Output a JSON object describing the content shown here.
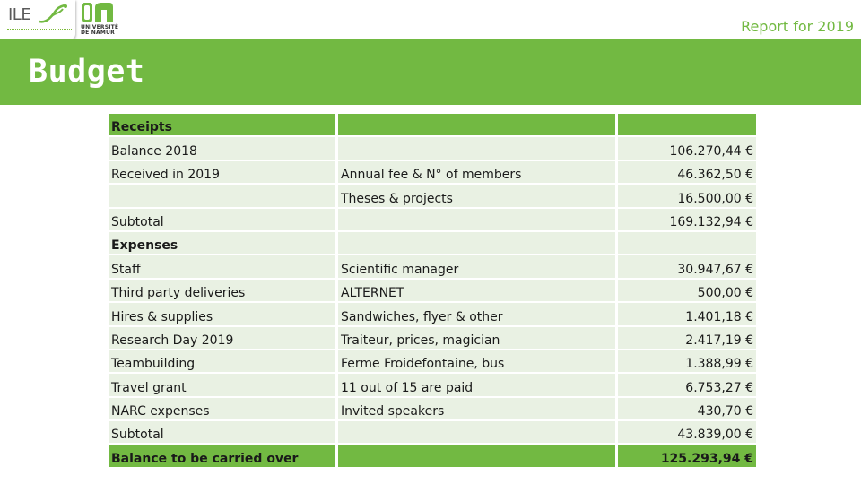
{
  "header": {
    "ile_logo_text": "ILE",
    "unamur_text": "UNIVERSITÉ DE NAMUR",
    "report_title": "Report for 2019"
  },
  "page": {
    "title": "Budget"
  },
  "colors": {
    "accent": "#72b942",
    "row_light": "#e9f1e3"
  },
  "budget_table": {
    "rows": [
      {
        "label": "Receipts",
        "detail": "",
        "amount": "",
        "style": "green",
        "bold": true
      },
      {
        "label": "Balance 2018",
        "detail": "",
        "amount": "106.270,44 €",
        "style": "light",
        "bold": false
      },
      {
        "label": "Received in 2019",
        "detail": "Annual fee & N° of members",
        "amount": "46.362,50 €",
        "style": "light",
        "bold": false
      },
      {
        "label": "",
        "detail": "Theses & projects",
        "amount": "16.500,00 €",
        "style": "light",
        "bold": false
      },
      {
        "label": "Subtotal",
        "detail": "",
        "amount": "169.132,94 €",
        "style": "light",
        "bold": false
      },
      {
        "label": "Expenses",
        "detail": "",
        "amount": "",
        "style": "light",
        "bold": true
      },
      {
        "label": "Staff",
        "detail": "Scientific manager",
        "amount": "30.947,67 €",
        "style": "light",
        "bold": false
      },
      {
        "label": "Third party deliveries",
        "detail": "ALTERNET",
        "amount": "500,00 €",
        "style": "light",
        "bold": false
      },
      {
        "label": "Hires & supplies",
        "detail": "Sandwiches, flyer & other",
        "amount": "1.401,18 €",
        "style": "light",
        "bold": false
      },
      {
        "label": "Research Day 2019",
        "detail": "Traiteur, prices, magician",
        "amount": "2.417,19 €",
        "style": "light",
        "bold": false
      },
      {
        "label": "Teambuilding",
        "detail": "Ferme Froidefontaine, bus",
        "amount": "1.388,99 €",
        "style": "light",
        "bold": false
      },
      {
        "label": "Travel grant",
        "detail": "11 out of 15 are paid",
        "amount": "6.753,27 €",
        "style": "light",
        "bold": false
      },
      {
        "label": "NARC expenses",
        "detail": "Invited speakers",
        "amount": "430,70 €",
        "style": "light",
        "bold": false
      },
      {
        "label": "Subtotal",
        "detail": "",
        "amount": "43.839,00 €",
        "style": "light",
        "bold": false
      },
      {
        "label": "Balance to be carried over",
        "detail": "",
        "amount": "125.293,94 €",
        "style": "green",
        "bold": true
      }
    ]
  }
}
